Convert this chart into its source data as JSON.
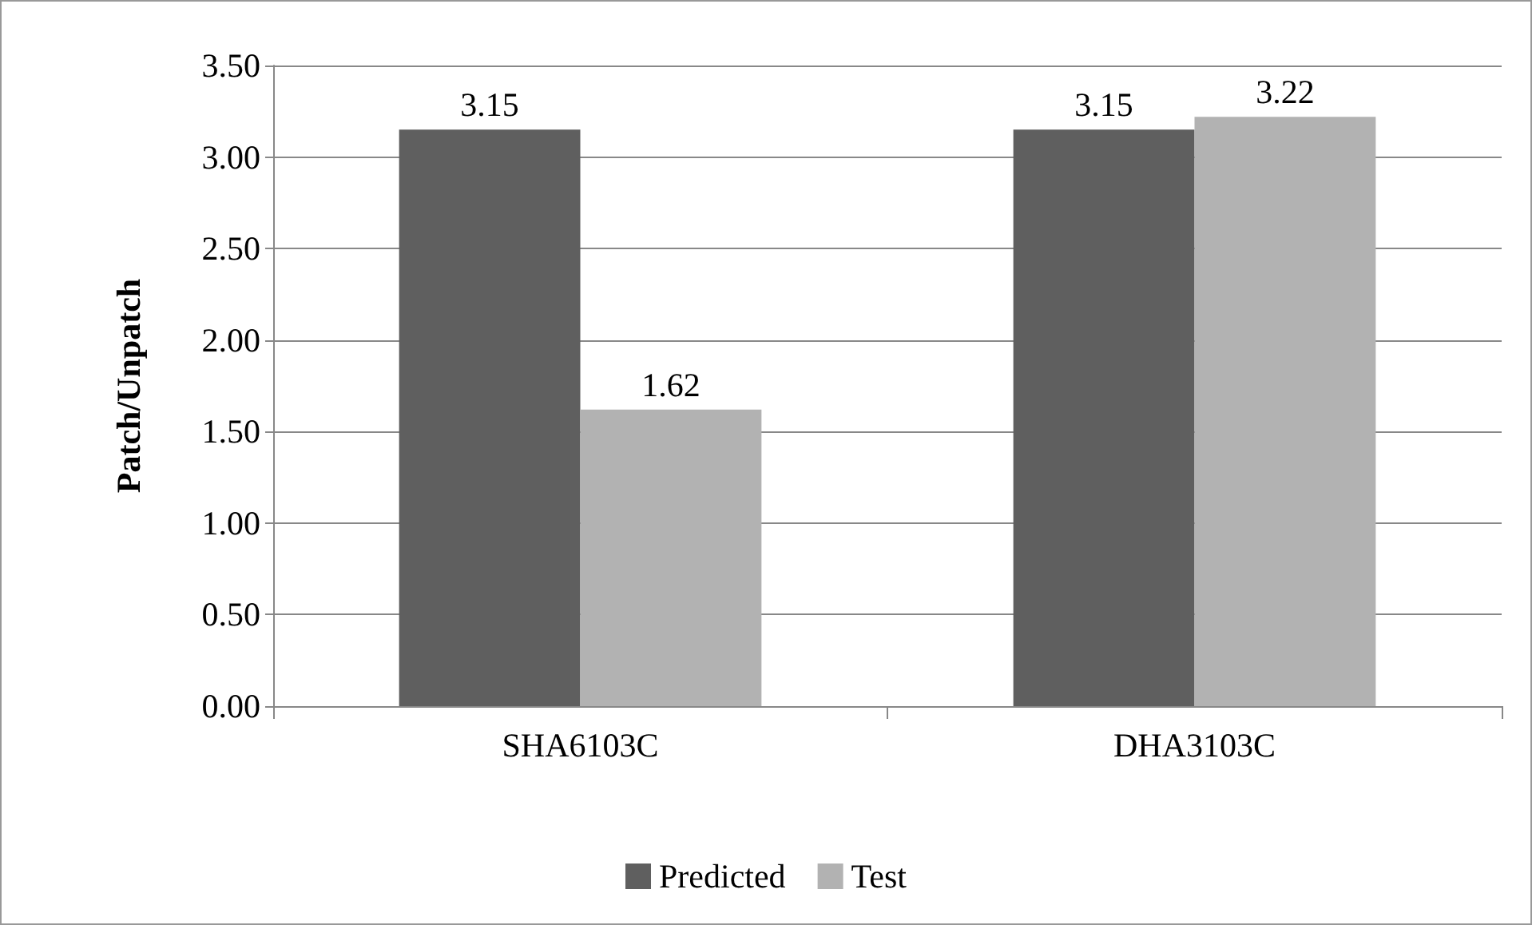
{
  "chart_data": {
    "type": "bar",
    "ylabel": "Patch/Unpatch",
    "categories": [
      "SHA6103C",
      "DHA3103C"
    ],
    "series": [
      {
        "name": "Predicted",
        "color": "#5f5f5f",
        "values": [
          3.15,
          3.15
        ]
      },
      {
        "name": "Test",
        "color": "#b2b2b2",
        "values": [
          1.62,
          3.22
        ]
      }
    ],
    "ylim": [
      0,
      3.5
    ],
    "yticks": [
      {
        "value": 0,
        "label": "0.00"
      },
      {
        "value": 0.5,
        "label": "0.50"
      },
      {
        "value": 1,
        "label": "1.00"
      },
      {
        "value": 1.5,
        "label": "1.50"
      },
      {
        "value": 2,
        "label": "2.00"
      },
      {
        "value": 2.5,
        "label": "2.50"
      },
      {
        "value": 3,
        "label": "3.00"
      },
      {
        "value": 3.5,
        "label": "3.50"
      }
    ],
    "grid": "y",
    "legend": "bottom",
    "data_labels": true
  }
}
